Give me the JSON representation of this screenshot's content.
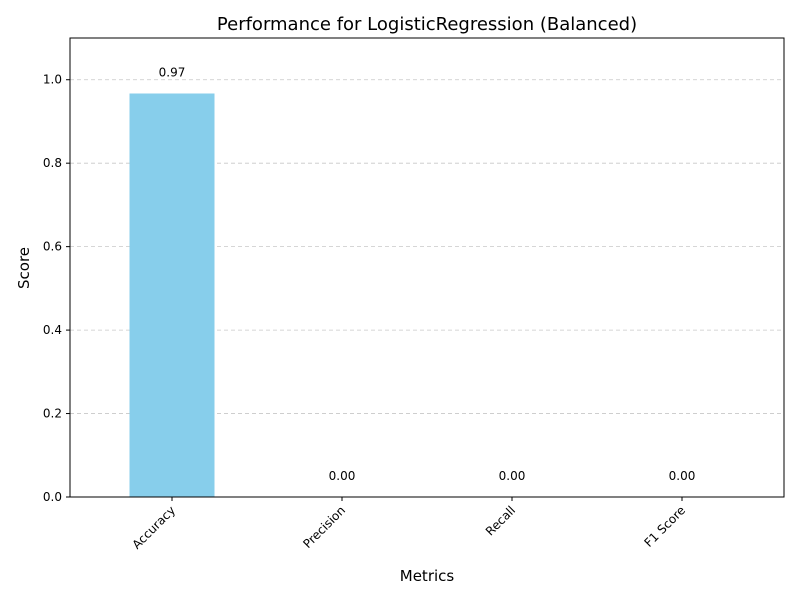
{
  "chart_data": {
    "type": "bar",
    "title": "Performance for LogisticRegression (Balanced)",
    "xlabel": "Metrics",
    "ylabel": "Score",
    "categories": [
      "Accuracy",
      "Precision",
      "Recall",
      "F1 Score"
    ],
    "values": [
      0.967,
      0.0,
      0.0,
      0.0
    ],
    "data_labels": [
      "0.97",
      "0.00",
      "0.00",
      "0.00"
    ],
    "ylim": [
      0,
      1.1
    ],
    "yticks": [
      0.0,
      0.2,
      0.4,
      0.6,
      0.8,
      1.0
    ],
    "ytick_labels": [
      "0.0",
      "0.2",
      "0.4",
      "0.6",
      "0.8",
      "1.0"
    ],
    "grid": "y-dashed",
    "bar_color": "#87ceeb"
  }
}
